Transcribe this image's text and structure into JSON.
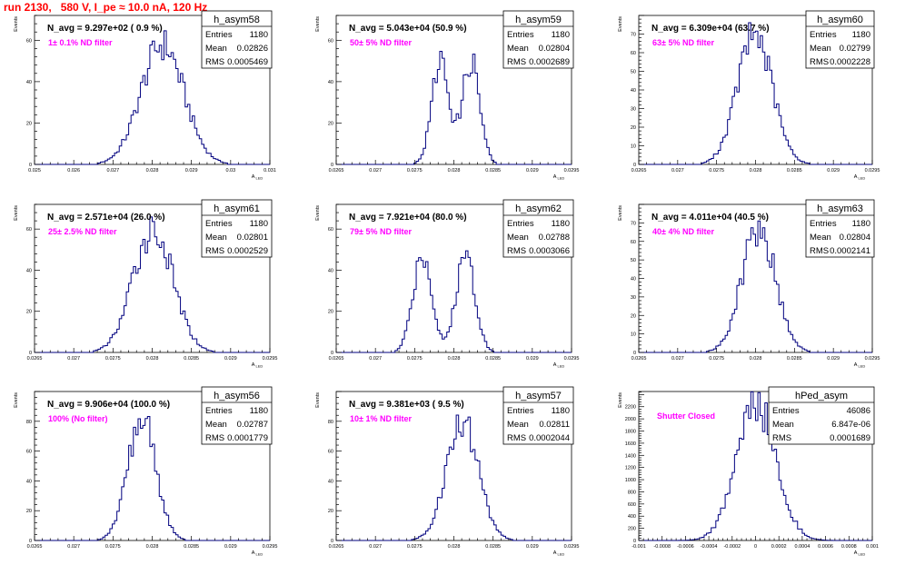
{
  "run_title": "run 2130,   580 V, I_pe ≈ 10.0 nA, 120 Hz",
  "colors": {
    "title": "#ff0000",
    "histogram": "#00007f",
    "filter_label": "#ff00ff",
    "frame": "#000000"
  },
  "stat_labels": [
    "Entries",
    "Mean",
    "RMS"
  ],
  "chart_data": [
    {
      "type": "bar",
      "name": "h_asym58",
      "ylabel": "Events",
      "xlabel": "A_{LED}",
      "navg": "N_avg = 9.297e+02 ( 0.9 %)",
      "filter": "1± 0.1% ND filter",
      "stats": [
        "1180",
        "0.02826",
        "0.0005469"
      ],
      "xlim": [
        0.025,
        0.031
      ],
      "ylim": [
        0,
        72
      ],
      "xticks": [
        "0.025",
        "0.026",
        "0.027",
        "0.028",
        "0.029",
        "0.03",
        "0.031"
      ],
      "xtick_values": [
        0.025,
        0.026,
        0.027,
        0.028,
        0.029,
        0.03,
        0.031
      ],
      "yticks": [
        0,
        20,
        40,
        60
      ],
      "mean": 0.02826,
      "rms": 0.0005469,
      "peak": 58,
      "bin_width": 6e-05,
      "peaks": null
    },
    {
      "type": "bar",
      "name": "h_asym59",
      "ylabel": "Events",
      "xlabel": "A_{LED}",
      "navg": "N_avg = 5.043e+04 (50.9 %)",
      "filter": "50± 5% ND filter",
      "stats": [
        "1180",
        "0.02804",
        "0.0002689"
      ],
      "xlim": [
        0.0265,
        0.0295
      ],
      "ylim": [
        0,
        72
      ],
      "xticks": [
        "0.0265",
        "0.027",
        "0.0275",
        "0.028",
        "0.0285",
        "0.029",
        "0.0295"
      ],
      "xtick_values": [
        0.0265,
        0.027,
        0.0275,
        0.028,
        0.0285,
        0.029,
        0.0295
      ],
      "yticks": [
        0,
        20,
        40,
        60
      ],
      "mean": 0.02804,
      "rms": 0.0002689,
      "peak": 58,
      "bin_width": 3e-05,
      "peaks": [
        {
          "mu": 0.02783,
          "sigma": 0.00011,
          "a": 50
        },
        {
          "mu": 0.02822,
          "sigma": 0.00011,
          "a": 50
        }
      ]
    },
    {
      "type": "bar",
      "name": "h_asym60",
      "ylabel": "Events",
      "xlabel": "A_{LED}",
      "navg": "N_avg = 6.309e+04 (63.7 %)",
      "filter": "63± 5% ND filter",
      "stats": [
        "1180",
        "0.02799",
        "0.0002228"
      ],
      "xlim": [
        0.0265,
        0.0295
      ],
      "ylim": [
        0,
        80
      ],
      "xticks": [
        "0.0265",
        "0.027",
        "0.0275",
        "0.028",
        "0.0285",
        "0.029",
        "0.0295"
      ],
      "xtick_values": [
        0.0265,
        0.027,
        0.0275,
        0.028,
        0.0285,
        0.029,
        0.0295
      ],
      "yticks": [
        0,
        10,
        20,
        30,
        40,
        50,
        60,
        70
      ],
      "mean": 0.02799,
      "rms": 0.0002228,
      "peak": 70,
      "bin_width": 3e-05,
      "peaks": null
    },
    {
      "type": "bar",
      "name": "h_asym61",
      "ylabel": "Events",
      "xlabel": "A_{LED}",
      "navg": "N_avg = 2.571e+04 (26.0 %)",
      "filter": "25± 2.5% ND filter",
      "stats": [
        "1180",
        "0.02801",
        "0.0002529"
      ],
      "xlim": [
        0.0265,
        0.0295
      ],
      "ylim": [
        0,
        72
      ],
      "xticks": [
        "0.0265",
        "0.027",
        "0.0275",
        "0.028",
        "0.0285",
        "0.029",
        "0.0295"
      ],
      "xtick_values": [
        0.0265,
        0.027,
        0.0275,
        0.028,
        0.0285,
        0.029,
        0.0295
      ],
      "yticks": [
        0,
        20,
        40,
        60
      ],
      "mean": 0.02801,
      "rms": 0.0002529,
      "peak": 60,
      "bin_width": 3e-05,
      "peaks": null
    },
    {
      "type": "bar",
      "name": "h_asym62",
      "ylabel": "Events",
      "xlabel": "A_{LED}",
      "navg": "N_avg = 7.921e+04 (80.0 %)",
      "filter": "79± 5% ND filter",
      "stats": [
        "1180",
        "0.02788",
        "0.0003066"
      ],
      "xlim": [
        0.0265,
        0.0295
      ],
      "ylim": [
        0,
        72
      ],
      "xticks": [
        "0.0265",
        "0.027",
        "0.0275",
        "0.028",
        "0.0285",
        "0.029",
        "0.0295"
      ],
      "xtick_values": [
        0.0265,
        0.027,
        0.0275,
        0.028,
        0.0285,
        0.029,
        0.0295
      ],
      "yticks": [
        0,
        20,
        40,
        60
      ],
      "mean": 0.02788,
      "rms": 0.0003066,
      "peak": 53,
      "bin_width": 3e-05,
      "peaks": [
        {
          "mu": 0.0276,
          "sigma": 0.00012,
          "a": 48
        },
        {
          "mu": 0.02815,
          "sigma": 0.00012,
          "a": 48
        }
      ]
    },
    {
      "type": "bar",
      "name": "h_asym63",
      "ylabel": "Events",
      "xlabel": "A_{LED}",
      "navg": "N_avg = 4.011e+04 (40.5 %)",
      "filter": "40± 4% ND filter",
      "stats": [
        "1180",
        "0.02804",
        "0.0002141"
      ],
      "xlim": [
        0.0265,
        0.0295
      ],
      "ylim": [
        0,
        80
      ],
      "xticks": [
        "0.0265",
        "0.027",
        "0.0275",
        "0.028",
        "0.0285",
        "0.029",
        "0.0295"
      ],
      "xtick_values": [
        0.0265,
        0.027,
        0.0275,
        0.028,
        0.0285,
        0.029,
        0.0295
      ],
      "yticks": [
        0,
        10,
        20,
        30,
        40,
        50,
        60,
        70
      ],
      "mean": 0.02804,
      "rms": 0.0002141,
      "peak": 68,
      "bin_width": 3e-05,
      "peaks": null
    },
    {
      "type": "bar",
      "name": "h_asym56",
      "ylabel": "Events",
      "xlabel": "A_{LED}",
      "navg": "N_avg = 9.906e+04 (100.0 %)",
      "filter": "100% (No filter)",
      "stats": [
        "1180",
        "0.02787",
        "0.0001779"
      ],
      "xlim": [
        0.0265,
        0.0295
      ],
      "ylim": [
        0,
        100
      ],
      "xticks": [
        "0.0265",
        "0.027",
        "0.0275",
        "0.028",
        "0.0285",
        "0.029",
        "0.0295"
      ],
      "xtick_values": [
        0.0265,
        0.027,
        0.0275,
        0.028,
        0.0285,
        0.029,
        0.0295
      ],
      "yticks": [
        0,
        20,
        40,
        60,
        80
      ],
      "mean": 0.02787,
      "rms": 0.0001779,
      "peak": 82,
      "bin_width": 3e-05,
      "peaks": null
    },
    {
      "type": "bar",
      "name": "h_asym57",
      "ylabel": "Events",
      "xlabel": "A_{LED}",
      "navg": "N_avg = 9.381e+03 ( 9.5 %)",
      "filter": "10± 1% ND filter",
      "stats": [
        "1180",
        "0.02811",
        "0.0002044"
      ],
      "xlim": [
        0.0265,
        0.0295
      ],
      "ylim": [
        0,
        100
      ],
      "xticks": [
        "0.0265",
        "0.027",
        "0.0275",
        "0.028",
        "0.0285",
        "0.029",
        "0.0295"
      ],
      "xtick_values": [
        0.0265,
        0.027,
        0.0275,
        0.028,
        0.0285,
        0.029,
        0.0295
      ],
      "yticks": [
        0,
        20,
        40,
        60,
        80
      ],
      "mean": 0.02811,
      "rms": 0.0002044,
      "peak": 80,
      "bin_width": 3e-05,
      "peaks": null
    },
    {
      "type": "bar",
      "name": "hPed_asym",
      "ylabel": "Events",
      "xlabel": "A_{LED}",
      "navg": "",
      "filter": "Shutter Closed",
      "stats": [
        "46086",
        "6.847e-06",
        "0.0001689"
      ],
      "xlim": [
        -0.001,
        0.001
      ],
      "ylim": [
        0,
        2450
      ],
      "xticks": [
        "-0.001",
        "-0.0008",
        "-0.0006",
        "-0.0004",
        "-0.0002",
        "0",
        "0.0002",
        "0.0004",
        "0.0006",
        "0.0008",
        "0.001"
      ],
      "xtick_values": [
        -0.001,
        -0.0008,
        -0.0006,
        -0.0004,
        -0.0002,
        0,
        0.0002,
        0.0004,
        0.0006,
        0.0008,
        0.001
      ],
      "yticks": [
        0,
        200,
        400,
        600,
        800,
        1000,
        1200,
        1400,
        1600,
        1800,
        2000,
        2200
      ],
      "mean": 6.847e-06,
      "rms": 0.0001689,
      "peak": 2230,
      "bin_width": 2e-05,
      "peaks": null
    }
  ]
}
